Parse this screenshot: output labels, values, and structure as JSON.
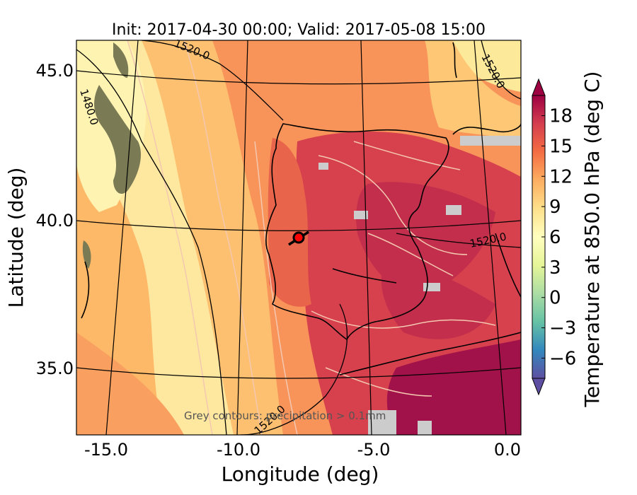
{
  "title": "Init: 2017-04-30 00:00; Valid: 2017-05-08 15:00",
  "x_axis": {
    "label": "Longitude (deg)",
    "ticks": [
      "-15.0",
      "-10.0",
      "-5.0",
      "0.0"
    ]
  },
  "y_axis": {
    "label": "Latitude (deg)",
    "ticks": [
      "45.0",
      "40.0",
      "35.0"
    ]
  },
  "colorbar": {
    "label": "Temperature at 850.0 hPa (deg C)",
    "ticks": [
      "18",
      "15",
      "12",
      "9",
      "6",
      "3",
      "0",
      "−3",
      "−6"
    ],
    "range": [
      -8,
      20
    ],
    "palette": "Spectral_r"
  },
  "contour_labels": [
    "1520.0",
    "1480.0",
    "1520.0",
    "1520.0",
    "1520.0"
  ],
  "note": "Grey contours: precipitation > 0.1mm",
  "colors": {
    "warm_dark": "#9e0142",
    "warm": "#d53e4f",
    "orange": "#f46d43",
    "light_orange": "#fdae61",
    "yellow": "#fee08b",
    "pale_yellow": "#ffffbf",
    "land_green": "#7a7a55",
    "precip_grey": "#cccccc"
  },
  "marker": {
    "color": "#ff0000",
    "icon": "location-marker-icon"
  }
}
